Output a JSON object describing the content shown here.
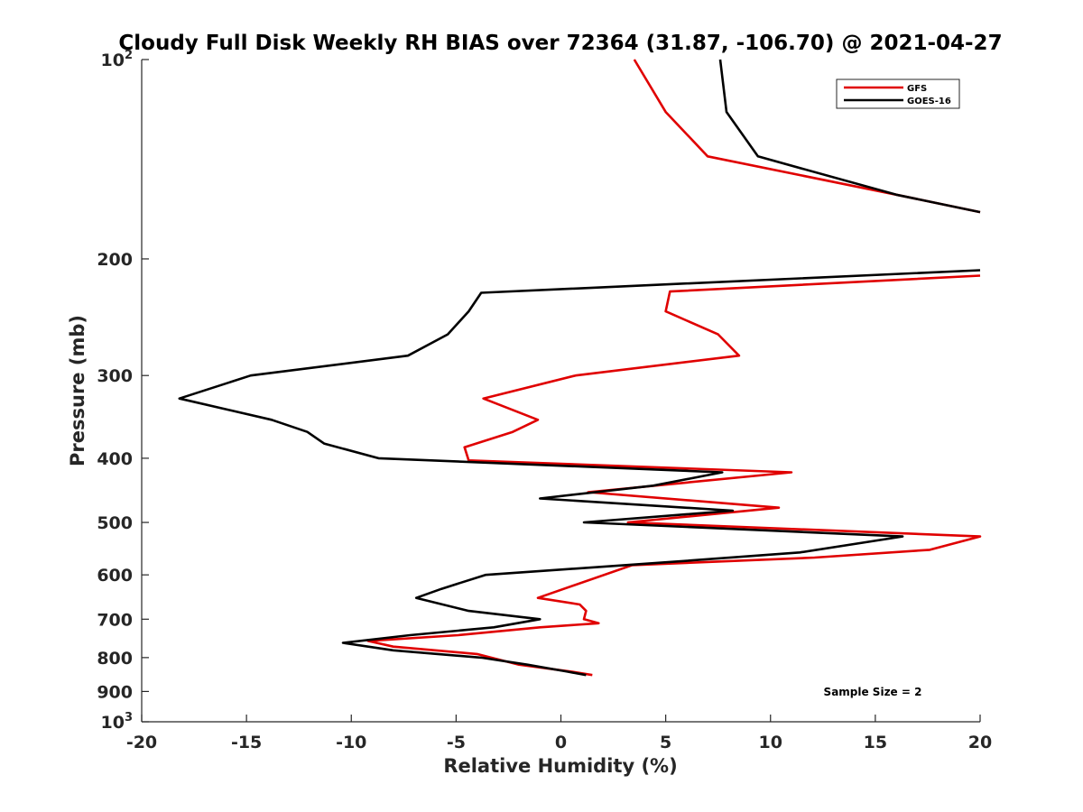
{
  "chart_data": {
    "type": "line",
    "title": "Cloudy Full Disk Weekly RH BIAS over 72364 (31.87, -106.70) @ 2021-04-27",
    "xlabel": "Relative Humidity (%)",
    "ylabel": "Pressure (mb)",
    "xlim": [
      -20,
      20
    ],
    "ylim": [
      100,
      1000
    ],
    "yscale": "log",
    "y_reversed": true,
    "x_ticks": [
      "-20",
      "-15",
      "-10",
      "-5",
      "0",
      "5",
      "10",
      "15",
      "20"
    ],
    "y_ticks": [
      {
        "value": 100,
        "label": "10",
        "sup": "2"
      },
      {
        "value": 200,
        "label": "200",
        "sup": ""
      },
      {
        "value": 300,
        "label": "300",
        "sup": ""
      },
      {
        "value": 400,
        "label": "400",
        "sup": ""
      },
      {
        "value": 500,
        "label": "500",
        "sup": ""
      },
      {
        "value": 600,
        "label": "600",
        "sup": ""
      },
      {
        "value": 700,
        "label": "700",
        "sup": ""
      },
      {
        "value": 800,
        "label": "800",
        "sup": ""
      },
      {
        "value": 900,
        "label": "900",
        "sup": ""
      },
      {
        "value": 1000,
        "label": "10",
        "sup": "3"
      }
    ],
    "legend_position": "top-right",
    "annotation": "Sample Size = 2",
    "series": [
      {
        "name": "GFS",
        "color": "#e00000",
        "points": [
          {
            "x": 3.5,
            "p": 100
          },
          {
            "x": 5.0,
            "p": 120
          },
          {
            "x": 7.0,
            "p": 140
          },
          {
            "x": 16.0,
            "p": 160
          },
          {
            "x": 20.0,
            "p": 170
          },
          {
            "x": null,
            "p": 190
          },
          {
            "x": 20.0,
            "p": 212
          },
          {
            "x": 5.2,
            "p": 224
          },
          {
            "x": 5.0,
            "p": 240
          },
          {
            "x": 7.5,
            "p": 260
          },
          {
            "x": 8.5,
            "p": 280
          },
          {
            "x": 0.7,
            "p": 300
          },
          {
            "x": -3.7,
            "p": 325
          },
          {
            "x": -1.1,
            "p": 350
          },
          {
            "x": -2.3,
            "p": 365
          },
          {
            "x": -4.6,
            "p": 385
          },
          {
            "x": -4.4,
            "p": 403
          },
          {
            "x": 11.0,
            "p": 420
          },
          {
            "x": 1.3,
            "p": 450
          },
          {
            "x": 10.4,
            "p": 475
          },
          {
            "x": 3.2,
            "p": 500
          },
          {
            "x": 20.0,
            "p": 525
          },
          {
            "x": 17.6,
            "p": 550
          },
          {
            "x": 12.1,
            "p": 565
          },
          {
            "x": 3.4,
            "p": 580
          },
          {
            "x": -1.1,
            "p": 650
          },
          {
            "x": 0.9,
            "p": 665
          },
          {
            "x": 1.2,
            "p": 680
          },
          {
            "x": 1.1,
            "p": 700
          },
          {
            "x": 1.8,
            "p": 710
          },
          {
            "x": -1.0,
            "p": 720
          },
          {
            "x": -4.9,
            "p": 740
          },
          {
            "x": -9.2,
            "p": 755
          },
          {
            "x": -8.0,
            "p": 770
          },
          {
            "x": -4.0,
            "p": 790
          },
          {
            "x": -2.0,
            "p": 820
          },
          {
            "x": 0.5,
            "p": 840
          },
          {
            "x": 1.5,
            "p": 850
          }
        ]
      },
      {
        "name": "GOES-16",
        "color": "#000000",
        "points": [
          {
            "x": 7.6,
            "p": 100
          },
          {
            "x": 7.9,
            "p": 120
          },
          {
            "x": 9.4,
            "p": 140
          },
          {
            "x": 16.0,
            "p": 160
          },
          {
            "x": 20.0,
            "p": 170
          },
          {
            "x": null,
            "p": 190
          },
          {
            "x": 20.0,
            "p": 208
          },
          {
            "x": -3.8,
            "p": 225
          },
          {
            "x": -4.4,
            "p": 240
          },
          {
            "x": -5.4,
            "p": 260
          },
          {
            "x": -7.3,
            "p": 280
          },
          {
            "x": -14.8,
            "p": 300
          },
          {
            "x": -18.2,
            "p": 325
          },
          {
            "x": -13.8,
            "p": 350
          },
          {
            "x": -12.1,
            "p": 365
          },
          {
            "x": -11.3,
            "p": 380
          },
          {
            "x": -8.7,
            "p": 400
          },
          {
            "x": 7.7,
            "p": 420
          },
          {
            "x": 4.4,
            "p": 440
          },
          {
            "x": -1.0,
            "p": 460
          },
          {
            "x": 8.2,
            "p": 480
          },
          {
            "x": 1.1,
            "p": 500
          },
          {
            "x": 16.3,
            "p": 525
          },
          {
            "x": 11.4,
            "p": 555
          },
          {
            "x": 4.8,
            "p": 575
          },
          {
            "x": -3.6,
            "p": 600
          },
          {
            "x": -5.7,
            "p": 630
          },
          {
            "x": -6.9,
            "p": 650
          },
          {
            "x": -4.4,
            "p": 680
          },
          {
            "x": -1.0,
            "p": 700
          },
          {
            "x": -3.2,
            "p": 720
          },
          {
            "x": -7.2,
            "p": 740
          },
          {
            "x": -10.4,
            "p": 760
          },
          {
            "x": -8.0,
            "p": 780
          },
          {
            "x": -3.8,
            "p": 800
          },
          {
            "x": -1.6,
            "p": 820
          },
          {
            "x": 0.3,
            "p": 840
          },
          {
            "x": 1.2,
            "p": 850
          }
        ]
      }
    ]
  }
}
